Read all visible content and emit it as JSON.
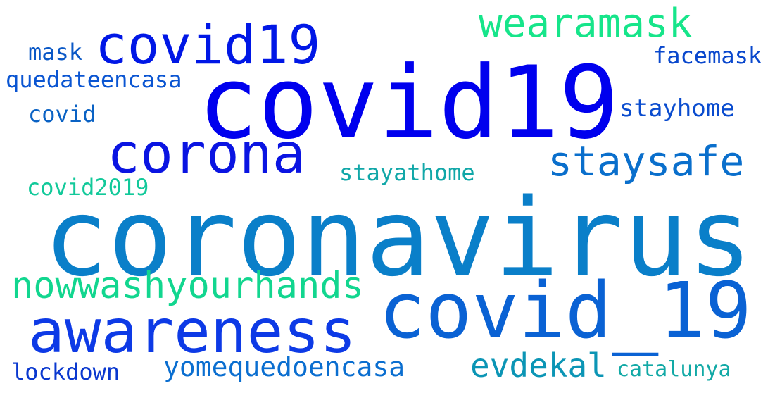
{
  "words": [
    {
      "id": "w-coronavirus",
      "name": "word-coronavirus",
      "text": "coronavirus",
      "color": "#0a7fc9"
    },
    {
      "id": "w-covid19",
      "name": "word-covid19",
      "text": "covid19",
      "color": "#0000ee"
    },
    {
      "id": "w-covid-underscore",
      "name": "word-covid-underscore-19",
      "text": "covid_19",
      "color": "#0a62d4"
    },
    {
      "id": "w-awareness",
      "name": "word-awareness",
      "text": "awareness",
      "color": "#0d3ae6"
    },
    {
      "id": "w-corona",
      "name": "word-corona",
      "text": "corona",
      "color": "#0a14e2"
    },
    {
      "id": "w-covid-special",
      "name": "word-covid-special-19",
      "text": "covid️19",
      "color": "#0017e6"
    },
    {
      "id": "w-staysafe",
      "name": "word-staysafe",
      "text": "staysafe",
      "color": "#0a6fcc"
    },
    {
      "id": "w-nowwashyourhands",
      "name": "word-nowwashyourhands",
      "text": "nowwashyourhands",
      "color": "#12d68f"
    },
    {
      "id": "w-wearamask",
      "name": "word-wearamask",
      "text": "wearamask",
      "color": "#16e58a"
    },
    {
      "id": "w-evdekal",
      "name": "word-evdekal",
      "text": "evdekal",
      "color": "#0b95b5"
    },
    {
      "id": "w-yomequedoencasa",
      "name": "word-yomequedoencasa",
      "text": "yomequedoencasa",
      "color": "#0a6ed0"
    },
    {
      "id": "w-stayhome",
      "name": "word-stayhome",
      "text": "stayhome",
      "color": "#0a4ccf"
    },
    {
      "id": "w-stayathome",
      "name": "word-stayathome",
      "text": "stayathome",
      "color": "#11a7a8"
    },
    {
      "id": "w-facemask",
      "name": "word-facemask",
      "text": "facemask",
      "color": "#0a48cd"
    },
    {
      "id": "w-quedateencasa",
      "name": "word-quedateencasa",
      "text": "quedateencasa",
      "color": "#0a55d2"
    },
    {
      "id": "w-covid",
      "name": "word-covid",
      "text": "covid",
      "color": "#0a62c4"
    },
    {
      "id": "w-covid2019",
      "name": "word-covid2019",
      "text": "covid2019",
      "color": "#12c99a"
    },
    {
      "id": "w-mask",
      "name": "word-mask",
      "text": "mask",
      "color": "#0a58c6"
    },
    {
      "id": "w-lockdown",
      "name": "word-lockdown",
      "text": "lockdown",
      "color": "#0a38cf"
    },
    {
      "id": "w-catalunya",
      "name": "word-catalunya",
      "text": "catalunya",
      "color": "#12a9a6"
    }
  ]
}
